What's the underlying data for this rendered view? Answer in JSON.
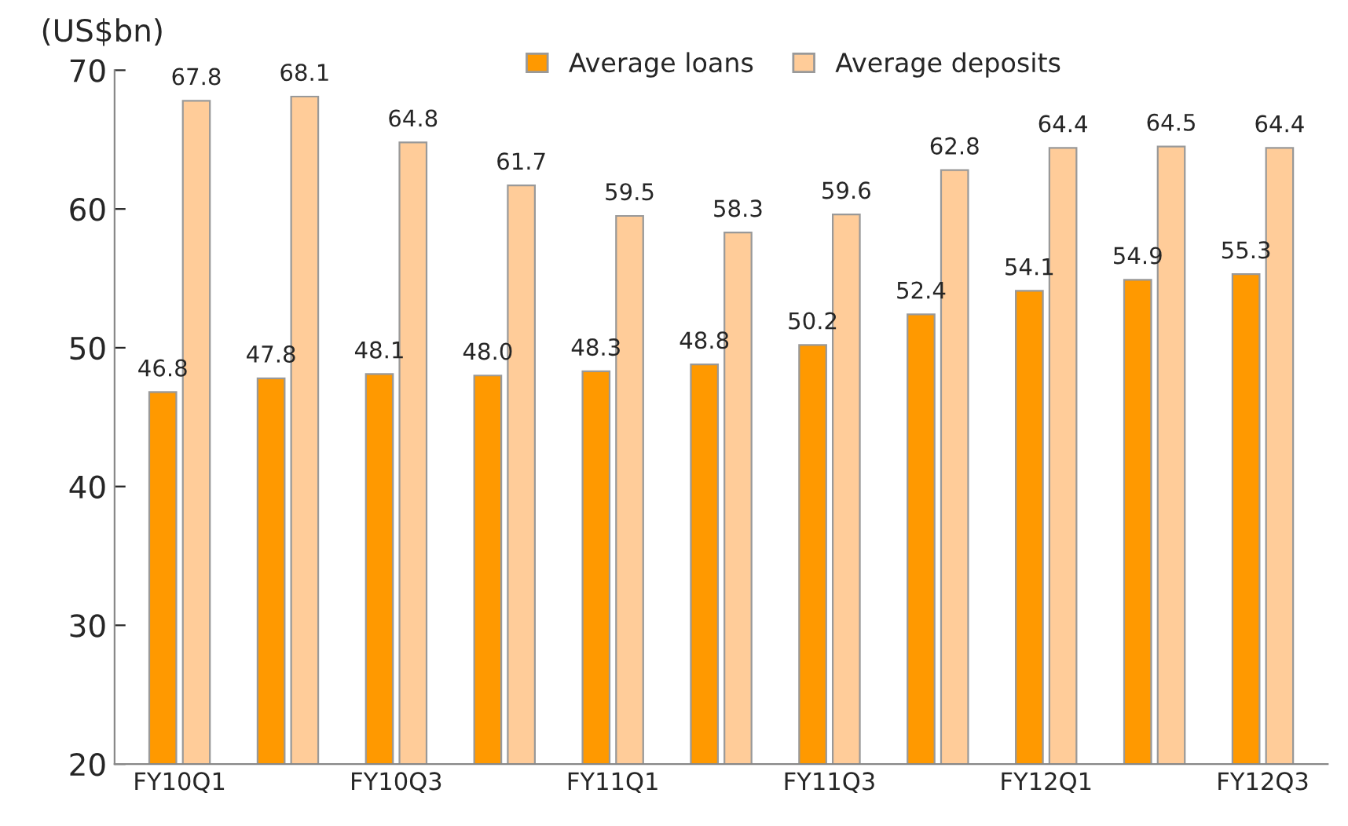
{
  "chart_data": {
    "type": "bar",
    "ylabel": "(US$bn)",
    "categories": [
      "FY10Q1",
      null,
      "FY10Q3",
      null,
      "FY11Q1",
      null,
      "FY11Q3",
      null,
      "FY12Q1",
      null,
      "FY12Q3"
    ],
    "series": [
      {
        "name": "Average loans",
        "color": "#ff9900",
        "values": [
          46.8,
          47.8,
          48.1,
          48.0,
          48.3,
          48.8,
          50.2,
          52.4,
          54.1,
          54.9,
          55.3
        ],
        "value_labels": [
          "46.8",
          "47.8",
          "48.1",
          "48.0",
          "48.3",
          "48.8",
          "50.2",
          "52.4",
          "54.1",
          "54.9",
          "55.3"
        ]
      },
      {
        "name": "Average deposits",
        "color": "#ffcc99",
        "values": [
          67.8,
          68.1,
          64.8,
          61.7,
          59.5,
          58.3,
          59.6,
          62.8,
          64.4,
          64.5,
          64.4
        ],
        "value_labels": [
          "67.8",
          "68.1",
          "64.8",
          "61.7",
          "59.5",
          "58.3",
          "59.6",
          "62.8",
          "64.4",
          "64.5",
          "64.4"
        ]
      }
    ],
    "ylim": [
      20,
      70
    ],
    "yticks": [
      20,
      30,
      40,
      50,
      60,
      70
    ],
    "grid": false,
    "legend": "top"
  }
}
